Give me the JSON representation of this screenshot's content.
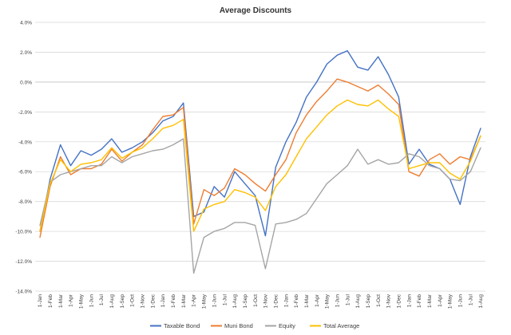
{
  "chart_data": {
    "type": "line",
    "title": "Average Discounts",
    "xlabel": "",
    "ylabel": "",
    "ylim": [
      -14,
      4
    ],
    "yticks": [
      4,
      2,
      0,
      -2,
      -4,
      -6,
      -8,
      -10,
      -12,
      -14
    ],
    "ytick_labels": [
      "4.0%",
      "2.0%",
      "0.0%",
      "-2.0%",
      "-4.0%",
      "-6.0%",
      "-8.0%",
      "-10.0%",
      "-12.0%",
      "-14.0%"
    ],
    "grid": true,
    "legend_position": "bottom",
    "x_start": "1-Jan",
    "x": [
      "1-Jan",
      "1-Feb",
      "1-Mar",
      "1-Apr",
      "1-May",
      "1-Jun",
      "1-Jul",
      "1-Aug",
      "1-Sep",
      "1-Oct",
      "1-Nov",
      "1-Dec",
      "1-Jan",
      "1-Feb",
      "1-Mar",
      "1-Apr",
      "1-May",
      "1-Jun",
      "1-Jul",
      "1-Aug",
      "1-Sep",
      "1-Oct",
      "1-Nov",
      "1-Dec",
      "1-Jan",
      "1-Feb",
      "1-Mar",
      "1-Apr",
      "1-May",
      "1-Jun",
      "1-Jul",
      "1-Aug",
      "1-Sep",
      "1-Oct",
      "1-Nov",
      "1-Dec",
      "1-Jan",
      "1-Feb",
      "1-Mar",
      "1-Apr",
      "1-May",
      "1-Jun",
      "1-Jul",
      "1-Aug"
    ],
    "series": [
      {
        "name": "Taxable Bond",
        "color": "#4472C4",
        "values": [
          -10.0,
          -6.5,
          -4.2,
          -5.6,
          -4.6,
          -4.9,
          -4.5,
          -3.8,
          -4.7,
          -4.4,
          -4.0,
          -3.4,
          -2.6,
          -2.3,
          -1.4,
          -9.0,
          -8.7,
          -7.0,
          -7.7,
          -6.0,
          -6.8,
          -7.6,
          -10.3,
          -5.7,
          -4.0,
          -2.7,
          -1.0,
          0.0,
          1.2,
          1.8,
          2.1,
          1.0,
          0.8,
          1.7,
          0.5,
          -1.0,
          -5.5,
          -4.5,
          -5.5,
          -5.8,
          -6.5,
          -8.2,
          -5.0,
          -3.1
        ]
      },
      {
        "name": "Muni Bond",
        "color": "#ED7D31",
        "values": [
          -10.4,
          -7.0,
          -5.0,
          -6.2,
          -5.8,
          -5.8,
          -5.5,
          -4.5,
          -5.3,
          -4.7,
          -4.2,
          -3.2,
          -2.3,
          -2.2,
          -1.7,
          -9.5,
          -7.2,
          -7.6,
          -7.1,
          -5.8,
          -6.2,
          -6.8,
          -7.3,
          -6.2,
          -5.2,
          -3.4,
          -2.2,
          -1.3,
          -0.6,
          0.2,
          0.0,
          -0.3,
          -0.6,
          -0.2,
          -0.8,
          -1.5,
          -6.0,
          -6.3,
          -5.2,
          -4.8,
          -5.5,
          -5.0,
          -5.2,
          -3.6
        ]
      },
      {
        "name": "Equity",
        "color": "#A5A5A5",
        "values": [
          -9.6,
          -6.7,
          -6.2,
          -6.0,
          -5.8,
          -5.6,
          -5.6,
          -5.0,
          -5.4,
          -5.0,
          -4.8,
          -4.6,
          -4.5,
          -4.2,
          -3.8,
          -12.8,
          -10.4,
          -10.0,
          -9.8,
          -9.4,
          -9.4,
          -9.6,
          -12.5,
          -9.5,
          -9.4,
          -9.2,
          -8.8,
          -7.8,
          -6.8,
          -6.2,
          -5.6,
          -4.5,
          -5.5,
          -5.2,
          -5.5,
          -5.4,
          -4.8,
          -5.0,
          -5.6,
          -5.8,
          -6.5,
          -6.6,
          -6.0,
          -4.4
        ]
      },
      {
        "name": "Total Average",
        "color": "#FFC000",
        "values": [
          -10.0,
          -6.8,
          -5.2,
          -6.0,
          -5.5,
          -5.4,
          -5.2,
          -4.4,
          -5.1,
          -4.7,
          -4.4,
          -3.8,
          -3.1,
          -2.9,
          -2.5,
          -10.0,
          -8.5,
          -8.2,
          -8.0,
          -7.2,
          -7.4,
          -7.7,
          -8.6,
          -7.0,
          -6.2,
          -5.0,
          -3.8,
          -3.0,
          -2.2,
          -1.6,
          -1.2,
          -1.5,
          -1.6,
          -1.2,
          -1.8,
          -2.3,
          -5.8,
          -5.6,
          -5.4,
          -5.4,
          -6.1,
          -6.5,
          -5.3,
          -3.6
        ]
      }
    ]
  }
}
